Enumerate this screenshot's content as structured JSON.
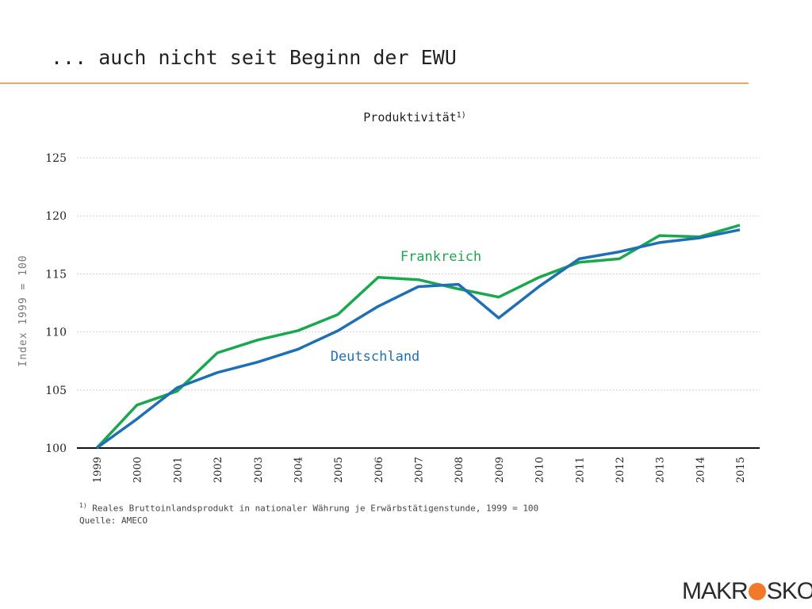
{
  "slide": {
    "title": "... auch nicht seit Beginn der EWU"
  },
  "footnote": {
    "marker": "1)",
    "text": " Reales Bruttoinlandsprodukt in nationaler Währung je Erwärbstätigenstunde, 1999 = 100",
    "source": "Quelle: AMECO"
  },
  "logo": {
    "part1": "MAKR",
    "part2": "SKOP"
  },
  "colors": {
    "accent_rule": "#f0a35a",
    "frankreich": "#1aa84e",
    "deutschland": "#1f6fb5",
    "logo_dot": "#f07a2a"
  },
  "chart_data": {
    "type": "line",
    "title": "Produktivität",
    "title_superscript": "1)",
    "ylabel": "Index 1999 = 100",
    "xlabel": "",
    "ylim": [
      100,
      125
    ],
    "yticks": [
      100,
      105,
      110,
      115,
      120,
      125
    ],
    "grid": true,
    "x": [
      "1999",
      "2000",
      "2001",
      "2002",
      "2003",
      "2004",
      "2005",
      "2006",
      "2007",
      "2008",
      "2009",
      "2010",
      "2011",
      "2012",
      "2013",
      "2014",
      "2015"
    ],
    "series": [
      {
        "name": "Frankreich",
        "color": "#1aa84e",
        "values": [
          100,
          103.7,
          104.9,
          108.2,
          109.3,
          110.1,
          111.5,
          114.7,
          114.5,
          113.7,
          113.0,
          114.7,
          116.0,
          116.3,
          118.3,
          118.2,
          119.2
        ]
      },
      {
        "name": "Deutschland",
        "color": "#1f6fb5",
        "values": [
          100,
          102.5,
          105.2,
          106.5,
          107.4,
          108.5,
          110.1,
          112.2,
          113.9,
          114.1,
          111.2,
          113.9,
          116.3,
          116.9,
          117.7,
          118.1,
          118.8
        ]
      }
    ]
  }
}
